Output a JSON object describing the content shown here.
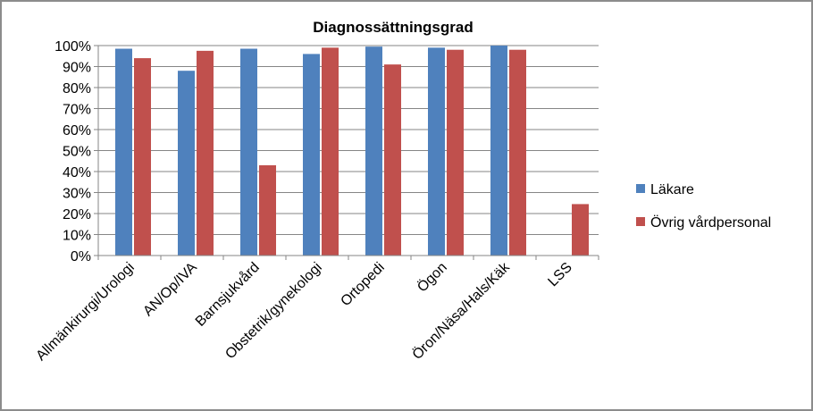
{
  "chart_data": {
    "type": "bar",
    "title": "Diagnossättningsgrad",
    "xlabel": "",
    "ylabel": "",
    "ylim": [
      0,
      100
    ],
    "yticks": [
      "0%",
      "10%",
      "20%",
      "30%",
      "40%",
      "50%",
      "60%",
      "70%",
      "80%",
      "90%",
      "100%"
    ],
    "categories": [
      "Allmänkirurgi/Urologi",
      "AN/Op/IVA",
      "Barnsjukvård",
      "Obstetrik/gynekologi",
      "Ortopedi",
      "Ögon",
      "Öron/Näsa/Hals/Käk",
      "LSS"
    ],
    "series": [
      {
        "name": "Läkare",
        "color": "#4F81BD",
        "values": [
          98.5,
          88,
          98.5,
          96,
          99.5,
          99,
          100,
          null
        ]
      },
      {
        "name": "Övrig vårdpersonal",
        "color": "#C0504D",
        "values": [
          94,
          97.5,
          43,
          99,
          91,
          98,
          98,
          24.5
        ]
      }
    ],
    "grid": true,
    "legend": "right"
  }
}
